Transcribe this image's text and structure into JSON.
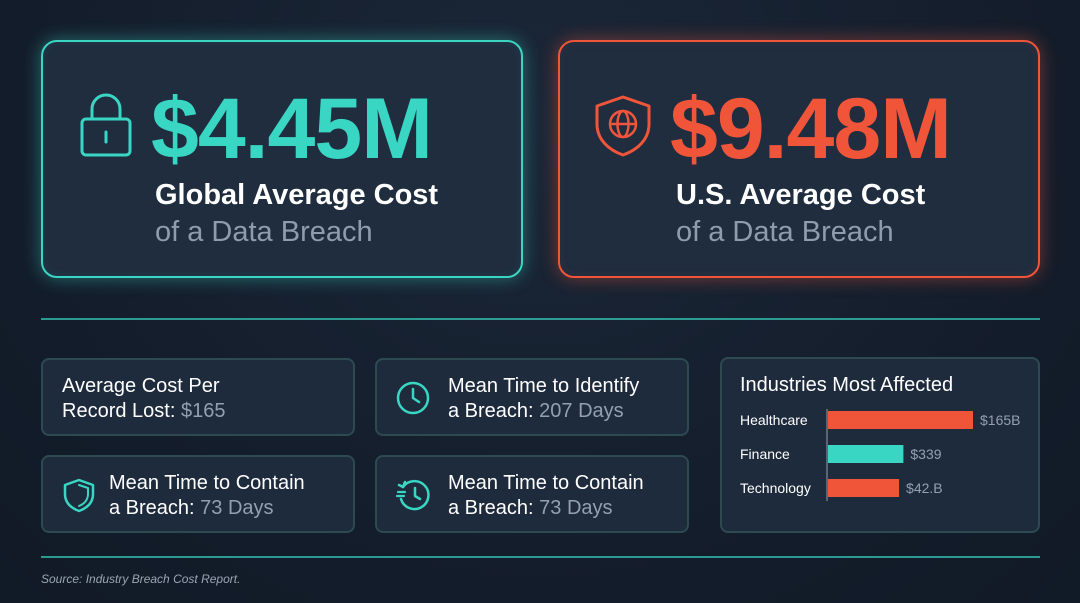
{
  "hero_global": {
    "value": "$4.45M",
    "line1": "Global Average Cost",
    "line2": "of a Data Breach",
    "icon": "lock-icon",
    "color": "#3ad6c4"
  },
  "hero_us": {
    "value": "$9.48M",
    "line1": "U.S. Average Cost",
    "line2": "of a Data Breach",
    "icon": "shield-globe-icon",
    "color": "#f0553a"
  },
  "stats": [
    {
      "line1": "Average Cost Per",
      "line2_label": "Record Lost:",
      "line2_value": "$165"
    },
    {
      "line1": "Mean Time to Identify",
      "line2_label": "a Breach:",
      "line2_value": "207 Days",
      "icon": "clock-icon"
    },
    {
      "line1": "Mean Time to Contain",
      "line2_label": "a Breach:",
      "line2_value": "73 Days",
      "icon": "shield-icon"
    },
    {
      "line1": "Mean Time to Contain",
      "line2_label": "a Breach:",
      "line2_value": "73 Days",
      "icon": "history-clock-icon"
    }
  ],
  "chart_data": {
    "type": "bar",
    "orientation": "horizontal",
    "title": "Industries Most Affected",
    "categories": [
      "Healthcare",
      "Finance",
      "Technology"
    ],
    "value_labels": [
      "$165B",
      "$339",
      "$42.B"
    ],
    "bar_fraction": [
      1.0,
      0.52,
      0.49
    ],
    "bar_colors": [
      "#f0553a",
      "#3ad6c4",
      "#f0553a"
    ],
    "grid": false,
    "legend": "none"
  },
  "source": "Source: Industry Breach Cost Report."
}
